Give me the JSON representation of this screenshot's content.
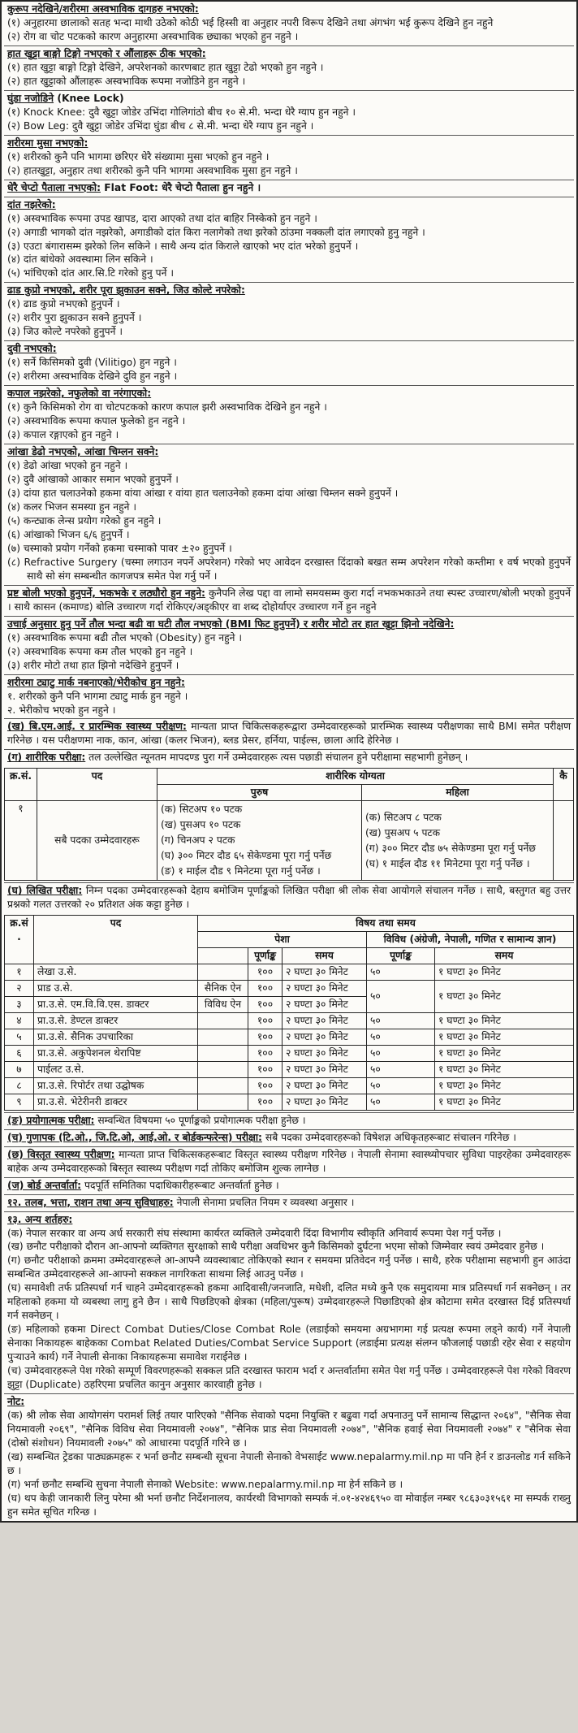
{
  "colors": {
    "paper": "#fcfbf8",
    "ink": "#161616",
    "border": "#262626"
  },
  "part1": [
    {
      "heading": "कुरूप नदेखिने/शरीरमा अस्वभाविक दागहरु नभएको:",
      "items": [
        "(१) अनुहारमा छालाको सतह भन्दा माथी उठेको कोठी भई हिस्सी वा अनुहार नपरी विरूप देखिने तथा अंगभंग भई कुरूप देखिने हुन नहुने",
        "(२) रोग वा चोट पटकको कारण अनुहारमा अस्वभाविक छ्याका भएको हुन नहुने ।"
      ]
    },
    {
      "heading": "हात खुट्टा बाङ्गो टिङ्गो नभएको र औंलाहरू ठीक भएको:",
      "items": [
        "(१) हात खुट्टा बाङ्गो टिङ्गो देखिने, अपरेशनको कारणबाट हात खुट्टा टेढो भएको हुन नहुने ।",
        "(२) हात खुट्टाको औंलाहरू अस्वभाविक रूपमा नजोडिने हुन नहुने ।"
      ]
    },
    {
      "heading": "घुंडा नजोडिने",
      "heading_rest": "(Knee Lock)",
      "items": [
        "(१) Knock Knee: दुवै खुट्टा जोडेर उभिंदा गोलिगांठो बीच १० से.मी. भन्दा धेरै ग्याप हुन नहुने ।",
        "(२) Bow Leg: दुवै खुट्टा जोडेर उभिंदा घुंडा बीच ८ से.मी. भन्दा धेरै ग्याप हुन नहुने ।"
      ]
    },
    {
      "heading": "शरीरमा मुसा नभएको:",
      "items": [
        "(१) शरीरको कुनै पनि भागमा छरिएर धेरै संख्यामा मुसा भएको हुन नहुने ।",
        "(२) हातखुट्टा, अनुहार तथा शरीरको कुनै पनि भागमा अस्वभाविक मुसा हुन नहुने ।"
      ]
    },
    {
      "heading": "धेरै चेप्टो पैताला नभएको:",
      "heading_rest": "Flat Foot: धेरै चेप्टो पैताला हुन नहुने ।",
      "items": []
    },
    {
      "heading": "दांत नझरेको:",
      "items": [
        "(१) अस्वभाविक रूपमा उपड खापड, दारा आएको तथा दांत बाहिर निस्केको हुन नहुने ।",
        "(२) अगाडी भागको दांत नझरेको, अगाडीको दांत किरा नलागेको तथा झरेको ठांउमा नक्कली दांत लगाएको हुनु नहुने ।",
        "(३) एउटा बंगारासम्म झरेको लिन सकिने । साथै अन्य दांत किराले खाएको भए दांत भरेको हुनुपर्ने ।",
        "(४) दांत बांधेको अवस्थामा लिन सकिने ।",
        "(५) भांचिएको दांत आर.सि.टि गरेको हुनु पर्ने ।"
      ]
    },
    {
      "heading": "ढाड कुप्रो नभएको, शरीर पूरा झुकाउन सक्ने, जिउ कोल्टे नपरेको:",
      "items": [
        "(१) ढाड कुप्रो नभएको हुनुपर्ने ।",
        "(२) शरीर पुरा झुकाउन सक्ने हुनुपर्ने ।",
        "(३) जिउ कोल्टे नपरेको हुनुपर्ने ।"
      ]
    },
    {
      "heading": "दुवी नभएको:",
      "items": [
        "(१) सर्ने किसिमको दुवी (Vilitigo) हुन नहुने ।",
        "(२) शरीरमा अस्वभाविक देखिने दुवि हुन नहुने ।"
      ]
    },
    {
      "heading": "कपाल नझरेको, नफुलेको वा नरंगाएको:",
      "items": [
        "(१) कुनै किसिमको रोग वा चोटपटकको कारण कपाल झरी अस्वभाविक देखिने हुन नहुने ।",
        "(२) अस्वभाविक रूपमा कपाल फुलेको हुन नहुने ।",
        "(३) कपाल रङ्गाएको हुन नहुने ।"
      ]
    },
    {
      "heading": "आंखा डेढो नभएको, आंखा चिम्लन सक्ने:",
      "items": [
        "(१) डेढो आंखा भएको हुन नहुने ।",
        "(२) दुवै आंखाको आकार समान भएको हुनुपर्ने ।",
        "(३) दांया हात चलाउनेको हकमा वांया आंखा र वांया हात चलाउनेको हकमा दांया आंखा चिम्लन सक्ने हुनुपर्ने ।",
        "(४) कलर भिजन समस्या हुन नहुने ।",
        "(५) कन्ट्याक लेन्स प्रयोग गरेको हुन नहुने ।",
        "(६) आंखाको भिजन ६/६ हुनुपर्ने ।",
        "(७) चस्माको प्रयोग गर्नेको हकमा चस्माको पावर ±२० हुनुपर्ने ।",
        "(८) Refractive Surgery (चस्मा लगाउन नपर्ने अपरेशन) गरेको भए आवेदन दरखास्त दिंदाको बखत सम्म अपरेशन गरेको कम्तीमा १ वर्ष भएको हुनुपर्ने साथै सो संग सम्बन्धीत कागजपत्र समेत पेश गर्नु पर्ने ।"
      ]
    },
    {
      "lead": "प्रष्ट बोली भएको हुनुपर्ने, भकभके र लठ्यौरो हुन नहुने:",
      "text": "कुनैपनि लेख पद्दा वा लामो समयसम्म कुरा गर्दा नभकभकाउने तथा स्पस्ट उच्चारण/बोली भएको हुनुपर्ने । साथै कासन (कमाण्ड) बोलि उच्चारण गर्दा रोकिएर/अड्कीएर वा शब्द दोहोर्याएर उच्चारण गर्ने हुन नहुने"
    },
    {
      "heading": "उचाई अनुसार हुनु पर्ने तौल भन्दा बढी वा घटी तौल नभएको (BMI फिट हुनुपर्ने) र शरीर मोटो तर हात खुट्टा झिनो नदेखिने:",
      "items": [
        "(१) अस्वभाविक रूपमा बढी तौल भएको (Obesity) हुन नहुने ।",
        "(२) अस्वभाविक रूपमा कम तौल भएको हुन नहुने ।",
        "(३) शरीर मोटो तथा हात झिनो नदेखिने हुनुपर्ने ।"
      ]
    },
    {
      "heading": "शरीरमा ट्याटु मार्क नबनाएको/भेरीकोच हुन नहुने:",
      "items": [
        "१. शरीरको कुनै पनि भागमा ट्याटु मार्क हुन नहुने ।",
        "२. भेरीकोच भएको हुन नहुने ।"
      ]
    },
    {
      "lead": "(ख) बि.एम.आई. र प्रारम्भिक स्वास्थ्य परीक्षण:",
      "text": "मान्यता प्राप्त चिकित्सकहरूद्वारा उम्मेदवारहरूको प्रारम्भिक स्वास्थ्य परीक्षणका साथै BMI समेत परीक्षण गरिनेछ । यस परीक्षणमा नाक, कान, आंखा (कलर भिजन), ब्लड प्रेसर, हर्निया, पाईल्स, छाला आदि हेरिनेछ ।"
    },
    {
      "lead": "(ग) शारीरिक परीक्षा:",
      "text": "तल उल्लेखित न्यूनतम मापदण्ड पुरा गर्ने उम्मेदवारहरू त्यस पछाडी संचालन हुने परीक्षामा सहभागी हुनेछन् ।"
    }
  ],
  "physical_table": {
    "headers": {
      "sn": "क्र.सं.",
      "post": "पद",
      "ability": "शारीरिक योग्यता",
      "male": "पुरुष",
      "female": "महिला",
      "remarks": "कै"
    },
    "rows": [
      {
        "sn": "१",
        "post": "सबै पदका उम्मेदवारहरू",
        "male": [
          "(क) सिटअप १० पटक",
          "(ख) पुसअप १० पटक",
          "(ग) चिनअप २ पटक",
          "(घ) ३०० मिटर दौड ६५ सेकेण्डमा पूरा गर्नु पर्नेछ",
          "(ङ) १ माईल दौड ९ मिनेटमा पूरा गर्नु पर्नेछ ।"
        ],
        "female": [
          "(क) सिटअप ८ पटक",
          "(ख) पुसअप ५ पटक",
          "(ग) ३०० मिटर दौड ७५ सेकेण्डमा पूरा गर्नु पर्नेछ",
          "(घ) १ माईल दौड ११ मिनेटमा पूरा गर्नु पर्नेछ ।"
        ],
        "remarks": ""
      }
    ]
  },
  "part2": [
    {
      "lead": "(घ) लिखित परीक्षा:",
      "text": "निम्न पदका उम्मेदवारहरूको देहाय बमोजिम पूर्णाङ्कको लिखित परीक्षा श्री लोक सेवा आयोगले संचालन गर्नेछ । साथै, बस्तुगत बहु उत्तर प्रश्नको गलत उत्तरको २० प्रतिशत अंक कट्टा हुनेछ ।"
    }
  ],
  "written_table": {
    "headers": {
      "sn": "क्र.सं.",
      "post": "पद",
      "subject_time": "विषय तथा समय",
      "pesha": "पेशा",
      "vividh": "विविध (अंग्रेजी, नेपाली, गणित र सामान्य ज्ञान)",
      "purnank": "पूर्णाङ्क",
      "samaya": "समय"
    },
    "rows": [
      {
        "sn": "१",
        "post": "लेखा उ.से.",
        "pesha": "",
        "p_purna": "१००",
        "p_samaya": "२ घण्टा ३० मिनेट",
        "v_purna": "५०",
        "v_samaya": "१ घण्टा ३० मिनेट"
      },
      {
        "sn": "२",
        "post": "प्राड उ.से.",
        "pesha": "सैनिक ऐन",
        "p_purna": "१००",
        "p_samaya": "२ घण्टा ३० मिनेट",
        "v_purna": "५०",
        "v_purna_span": 2,
        "v_samaya": "१ घण्टा ३० मिनेट",
        "v_samaya_span": 2
      },
      {
        "sn": "३",
        "post": "प्रा.उ.से. एम.वि.वि.एस. डाक्टर",
        "pesha": "विविध ऐन",
        "p_purna": "१००",
        "p_samaya": "२ घण्टा ३० मिनेट"
      },
      {
        "sn": "४",
        "post": "प्रा.उ.से. डेण्टल डाक्टर",
        "pesha": "",
        "p_purna": "१००",
        "p_samaya": "२ घण्टा ३० मिनेट",
        "v_purna": "५०",
        "v_samaya": "१ घण्टा ३० मिनेट"
      },
      {
        "sn": "५",
        "post": "प्रा.उ.से. सैनिक उपचारिका",
        "pesha": "",
        "p_purna": "१००",
        "p_samaya": "२ घण्टा ३० मिनेट",
        "v_purna": "५०",
        "v_samaya": "१ घण्टा ३० मिनेट"
      },
      {
        "sn": "६",
        "post": "प्रा.उ.से. अकुपेशनल थेरापिष्ट",
        "pesha": "",
        "p_purna": "१००",
        "p_samaya": "२ घण्टा ३० मिनेट",
        "v_purna": "५०",
        "v_samaya": "१ घण्टा ३० मिनेट"
      },
      {
        "sn": "७",
        "post": "पाईलट उ.से.",
        "pesha": "",
        "p_purna": "१००",
        "p_samaya": "२ घण्टा ३० मिनेट",
        "v_purna": "५०",
        "v_samaya": "१ घण्टा ३० मिनेट"
      },
      {
        "sn": "८",
        "post": "प्रा.उ.से. रिपोर्टर तथा उद्घोषक",
        "pesha": "",
        "p_purna": "१००",
        "p_samaya": "२ घण्टा ३० मिनेट",
        "v_purna": "५०",
        "v_samaya": "१ घण्टा ३० मिनेट"
      },
      {
        "sn": "९",
        "post": "प्रा.उ.से. भेटेरीनरी डाक्टर",
        "pesha": "",
        "p_purna": "१००",
        "p_samaya": "२ घण्टा ३० मिनेट",
        "v_purna": "५०",
        "v_samaya": "१ घण्टा ३० मिनेट"
      }
    ]
  },
  "part3": [
    {
      "lead": "(ङ) प्रयोगात्मक परीक्षा:",
      "text": "सम्वन्धित विषयमा ५० पूर्णाङ्कको प्रयोगात्मक परीक्षा हुनेछ ।"
    },
    {
      "lead": "(च) गुणापक (टि.ओ., जि.टि.ओ, आई.ओ. र बोर्डकन्फरेन्स) परीक्षा:",
      "text": "सबै पदका उम्मेदवारहरूको विषेशज्ञ अधिकृतहरूबाट संचालन गरिनेछ ।"
    },
    {
      "lead": "(छ) विस्तृत स्वास्थ्य परीक्षण:",
      "text": "मान्यता प्राप्त चिकित्सकहरूबाट विस्तृत स्वास्थ्य परीक्षण गरिनेछ । नेपाली सेनामा स्वास्थ्योपचार सुविधा पाइरहेका उम्मेदवारहरू बाहेक अन्य उम्मेदवारहरूको बिस्तृत स्वास्थ्य परीक्षण गर्दा तोकिए बमोजिम शुल्क लाग्नेछ ।"
    },
    {
      "lead": "(ज) बोर्ड अन्तर्वार्ता:",
      "text": "पदपूर्ति समितिका पदाधिकारीहरूबाट अन्तर्वार्ता हुनेछ ।"
    },
    {
      "lead": "१२. तलब, भत्ता, राशन तथा अन्य सुविधाहरु:",
      "text": "नेपाली सेनामा प्रचलित नियम र व्यवस्था अनुसार ।"
    },
    {
      "heading": "१३. अन्य शर्तहरु:",
      "items": [
        "(क) नेपाल सरकार वा अन्य अर्ध सरकारी संघ संस्थामा कार्यरत व्यक्तिले उम्मेदवारी दिंदा विभागीय स्वीकृति अनिवार्य रूपमा पेश गर्नु पर्नेछ ।",
        "(ख) छनौट परीक्षाको दौरान आ-आफ्नो व्यक्तिगत सुरक्षाको साथै परीक्षा अवधिभर कुनै किसिमको दुर्घटना भएमा सोको जिम्मेवार स्वयं उम्मेदवार हुनेछ ।",
        "(ग) छनौट परीक्षाको क्रममा उम्मेदवारहरूले आ-आफ्नै व्यवस्थाबाट तोकिएको स्थान र समयमा प्रतिवेदन गर्नु पर्नेछ । साथै, हरेक परीक्षामा सहभागी हुन आउंदा सम्बन्धित उम्मेदवारहरूले आ-आफ्नो सक्कल नागरिकता साथमा लिई आउनु पर्नेछ ।",
        "(घ) समावेशी तर्फ प्रतिस्पर्धा गर्न चाहने उम्मेदवारहरूको हकमा आदिवासी/जनजाति, मधेशी, दलित मध्ये कुनै एक समुदायमा मात्र प्रतिस्पर्धा गर्न सक्नेछन् । तर महिलाको हकमा यो व्यबस्था लागु हुने छैन । साथै पिछडिएको क्षेत्रका (महिला/पुरूष) उम्मेदवारहरूले पिछाडिएको क्षेत्र कोटामा समेत दरखास्त दिई प्रतिस्पर्धा गर्न सक्नेछन् ।",
        "(ङ) महिलाको हकमा Direct Combat Duties/Close Combat Role (लडाईको समयमा अग्रभागमा गई प्रत्यक्ष रूपमा लड्ने कार्य) गर्ने नेपाली सेनाका निकायहरू बाहेकका Combat Related Duties/Combat Service Support (लडाईमा प्रत्यक्ष संलग्न फौजलाई पछाडी रहेर सेवा र सहयोग पुऱ्याउने कार्य) गर्ने नेपाली सेनाका निकायहरूमा समावेश गराईनेछ ।",
        "(च) उम्मेदवारहरूले पेश गरेको सम्पूर्ण विवरणहरूको सक्कल प्रति दरखास्त फाराम भर्दा र अन्तर्वार्तामा समेत पेश गर्नु पर्नेछ । उम्मेदवारहरूले पेश गरेको विवरण झुट्टा (Duplicate) ठहरिएमा प्रचलित कानुन अनुसार कारवाही हुनेछ ।"
      ]
    },
    {
      "heading": "नोट:",
      "items": [
        "(क) श्री लोक सेवा आयोगसंग परामर्श लिई तयार पारिएको \"सैनिक सेवाको पदमा नियुक्ति र बढुवा गर्दा अपनाउनु पर्ने सामान्य सिद्धान्त २०६४\", \"सैनिक सेवा नियमावली २०६९\", \"सैनिक विविध सेवा नियमावली २०७४\", \"सैनिक प्राड सेवा नियमावली २०७४\", \"सैनिक हवाई सेवा नियमावली २०७४\" र \"सैनिक सेवा (दोस्रो संशोधन) नियमावली २०७५\" को आधारमा पदपूर्ति गरिने छ ।",
        "(ख) सम्बन्धित ट्रेडका पाठ्यक्रमहरू र भर्ना छनौट सम्बन्धी सूचना नेपाली सेनाको वेभसाईट www.nepalarmy.mil.np मा पनि हेर्न र डाउनलोड गर्न सकिने छ ।",
        "(ग) भर्ना छनौट सम्बन्धि सुचना नेपाली सेनाको Website: www.nepalarmy.mil.np मा हेर्न सकिने छ ।",
        "(घ) थप केही जानकारी लिनु परेमा श्री भर्ना छनौट निर्देशनालय, कार्यरथी विभागको सम्पर्क नं.०१-४२४६९५० वा मोवाईल नम्बर ९८६३०३१५६१ मा सम्पर्क राख्नु हुन समेत सूचित गरिन्छ ।"
      ]
    }
  ]
}
